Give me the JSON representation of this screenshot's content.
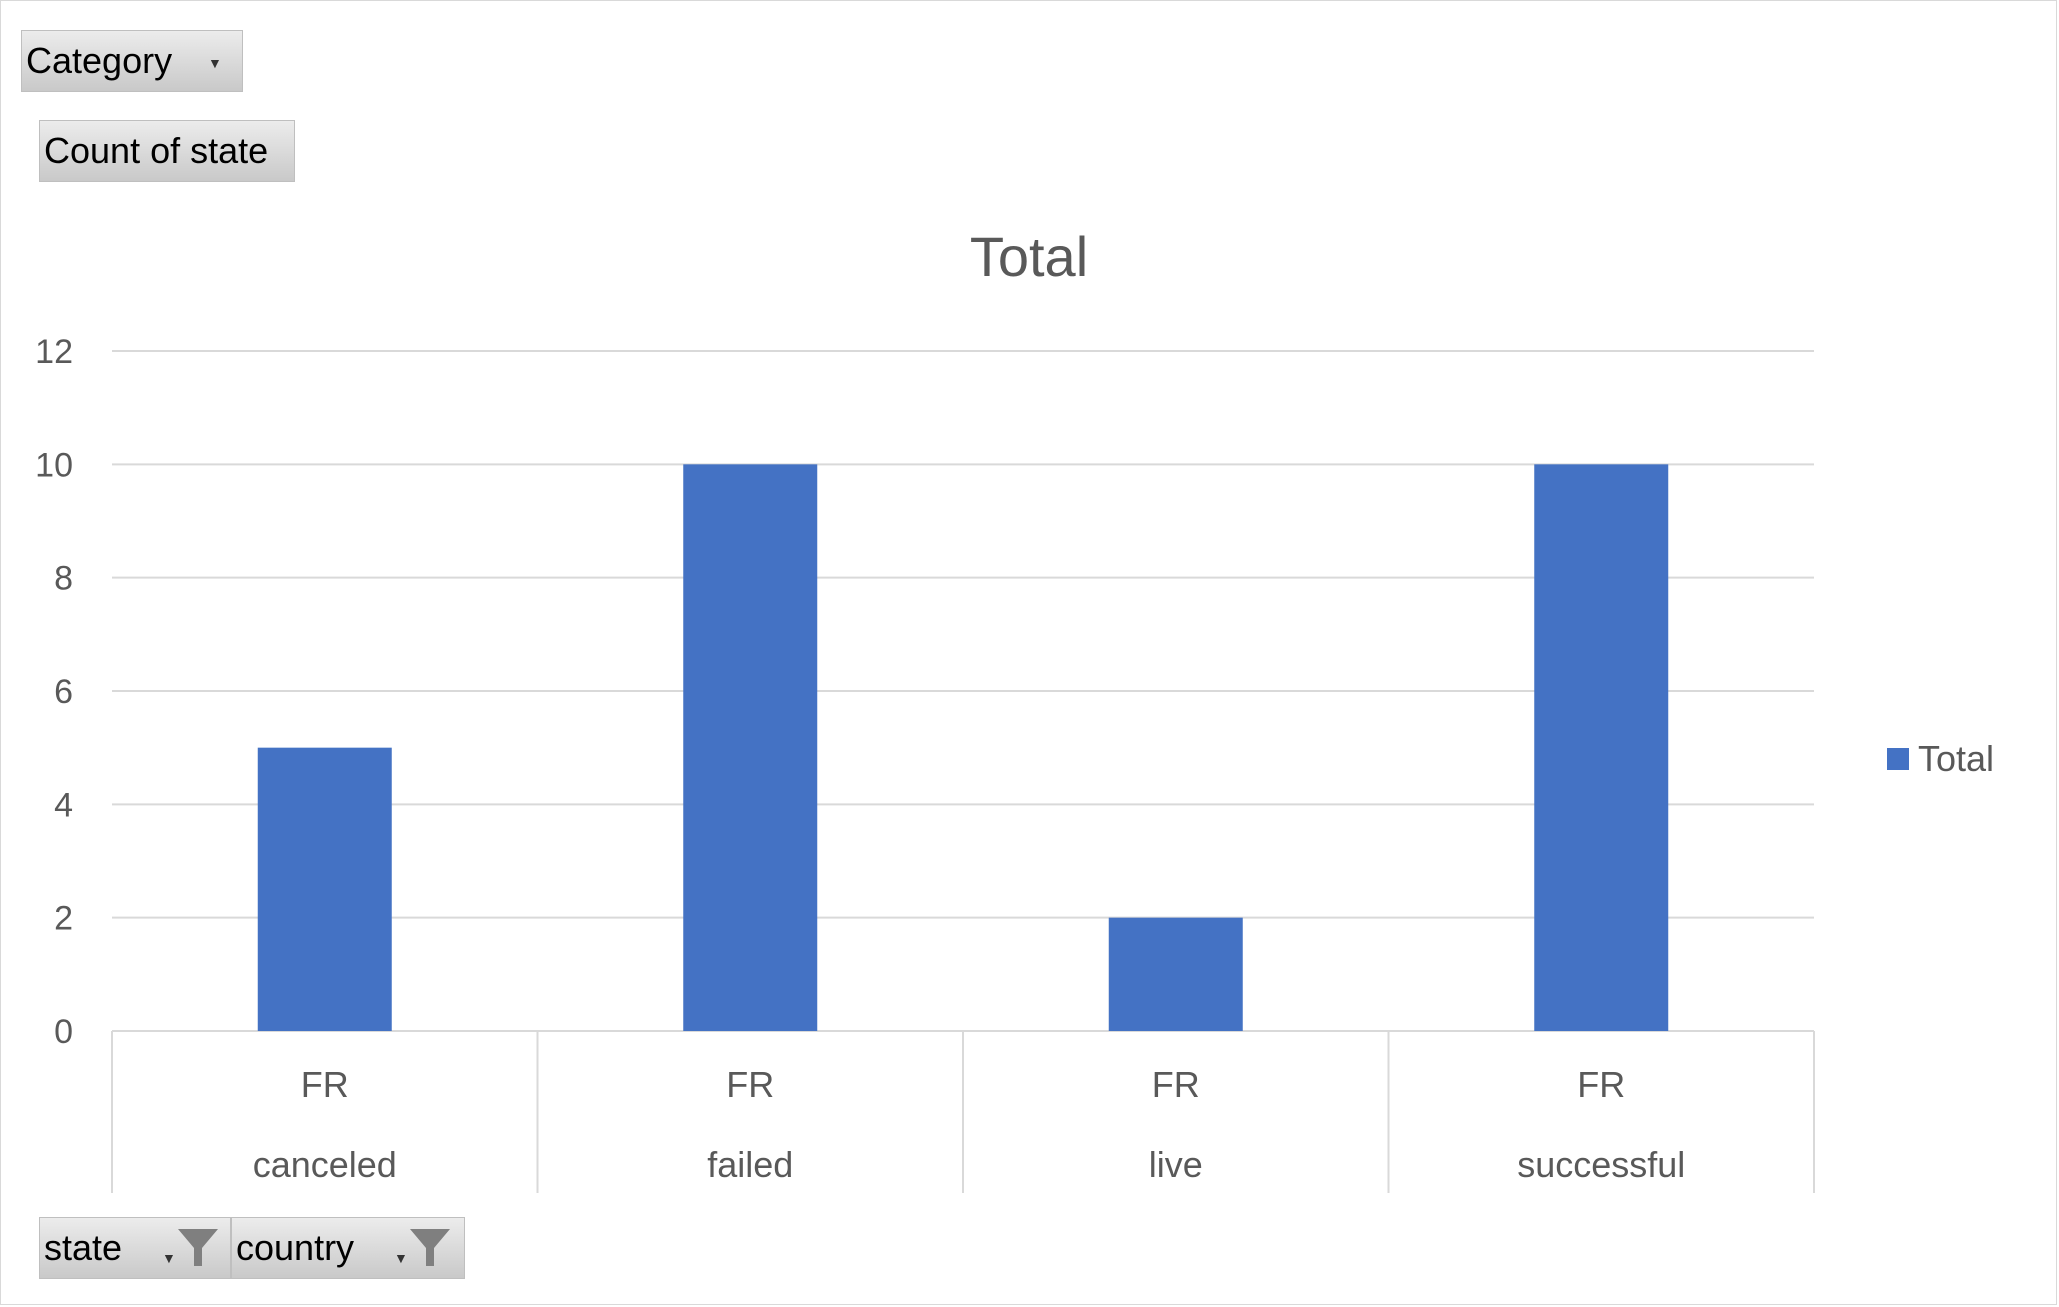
{
  "pivot": {
    "filter_button": {
      "label": "Category"
    },
    "value_button": {
      "label": "Count of state"
    },
    "axis_buttons": [
      {
        "label": "state"
      },
      {
        "label": "country"
      }
    ]
  },
  "colors": {
    "bar": "#4472c4",
    "grid": "#d9d9d9",
    "text": "#595959"
  },
  "chart_data": {
    "type": "bar",
    "title": "Total",
    "categories": [
      {
        "outer": "canceled",
        "inner": "FR"
      },
      {
        "outer": "failed",
        "inner": "FR"
      },
      {
        "outer": "live",
        "inner": "FR"
      },
      {
        "outer": "successful",
        "inner": "FR"
      }
    ],
    "series": [
      {
        "name": "Total",
        "values": [
          5,
          10,
          2,
          10
        ]
      }
    ],
    "ylim": [
      0,
      12
    ],
    "yticks": [
      0,
      2,
      4,
      6,
      8,
      10,
      12
    ],
    "grid": true,
    "legend": "right"
  }
}
